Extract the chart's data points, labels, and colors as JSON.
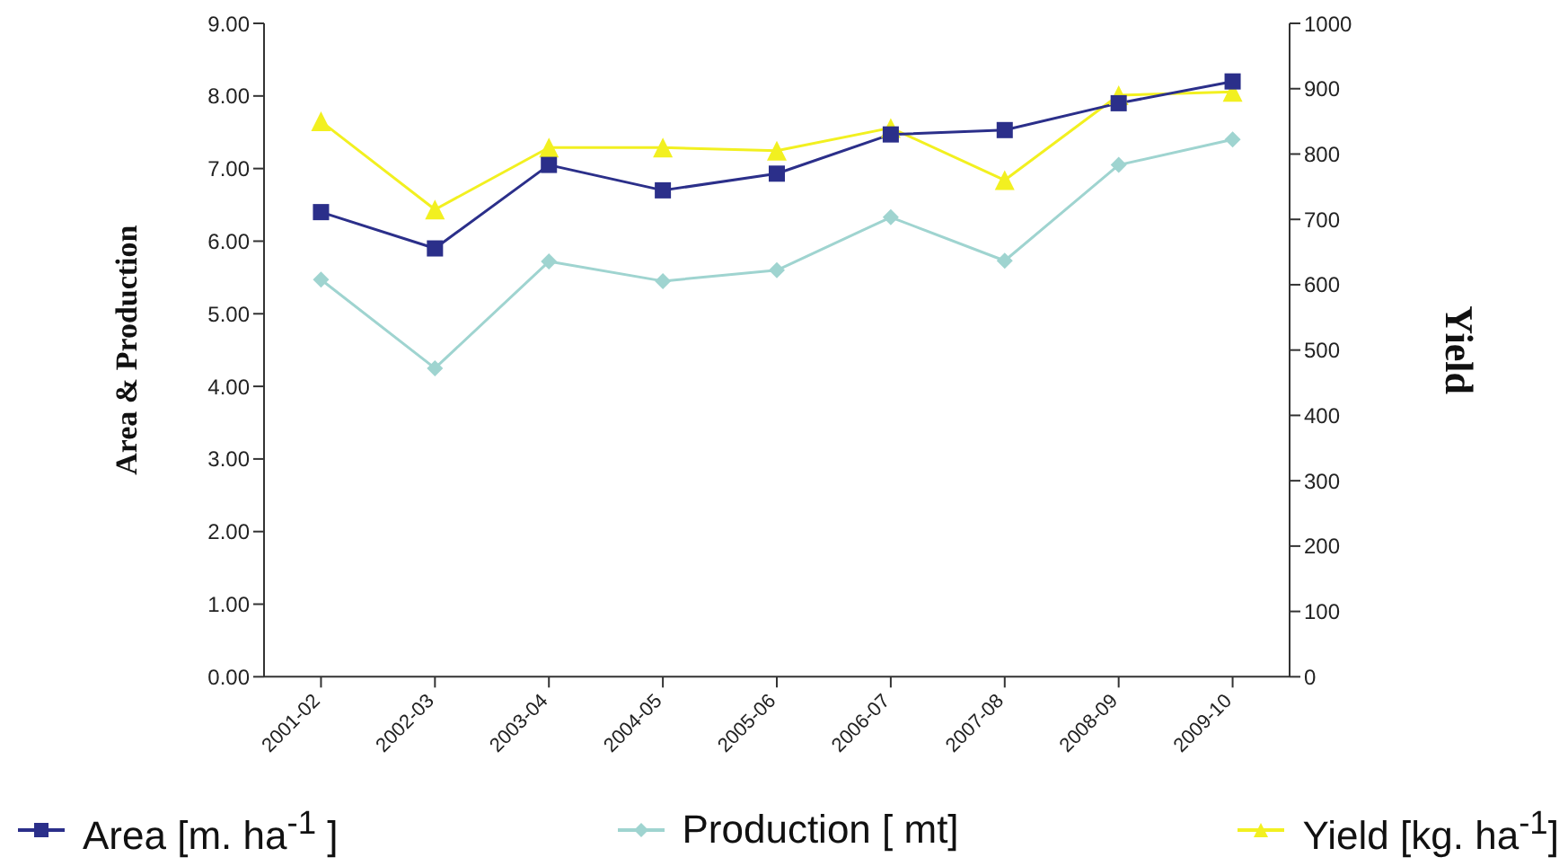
{
  "chart_data": {
    "type": "line",
    "ylabel": "Area & Production",
    "y2label": "Yield",
    "categories": [
      "2001-02",
      "2002-03",
      "2003-04",
      "2004-05",
      "2005-06",
      "2006-07",
      "2007-08",
      "2008-09",
      "2009-10"
    ],
    "series": [
      {
        "name": "Area [m. ha$^{-1}$ ]",
        "color": "#2b2f8a",
        "marker": "square",
        "values": [
          6.4,
          5.9,
          7.05,
          6.7,
          6.93,
          7.47,
          7.53,
          7.9,
          8.2
        ]
      },
      {
        "name": "Production [ mt]",
        "color": "#9fd4d0",
        "marker": "diamond",
        "values": [
          5.47,
          4.25,
          5.72,
          5.45,
          5.6,
          6.33,
          5.73,
          7.05,
          7.4
        ]
      },
      {
        "name": "Yield [kg. ha$^{-1}$]",
        "color": "#f2f020",
        "marker": "triangle",
        "axis": "y2",
        "values": [
          850,
          715,
          810,
          810,
          805,
          840,
          760,
          890,
          895
        ]
      }
    ],
    "ylim": [
      0,
      9
    ],
    "yticks": [
      {
        "value": 0,
        "label": "0.00"
      },
      {
        "value": 1,
        "label": "1.00"
      },
      {
        "value": 2,
        "label": "2.00"
      },
      {
        "value": 3,
        "label": "3.00"
      },
      {
        "value": 4,
        "label": "4.00"
      },
      {
        "value": 5,
        "label": "5.00"
      },
      {
        "value": 6,
        "label": "6.00"
      },
      {
        "value": 7,
        "label": "7.00"
      },
      {
        "value": 8,
        "label": "8.00"
      },
      {
        "value": 9,
        "label": "9.00"
      }
    ],
    "y2lim": [
      0,
      1000
    ],
    "y2ticks": [
      0,
      100,
      200,
      300,
      400,
      500,
      600,
      700,
      800,
      900,
      1000
    ],
    "grid": false,
    "legend": "bottom"
  }
}
